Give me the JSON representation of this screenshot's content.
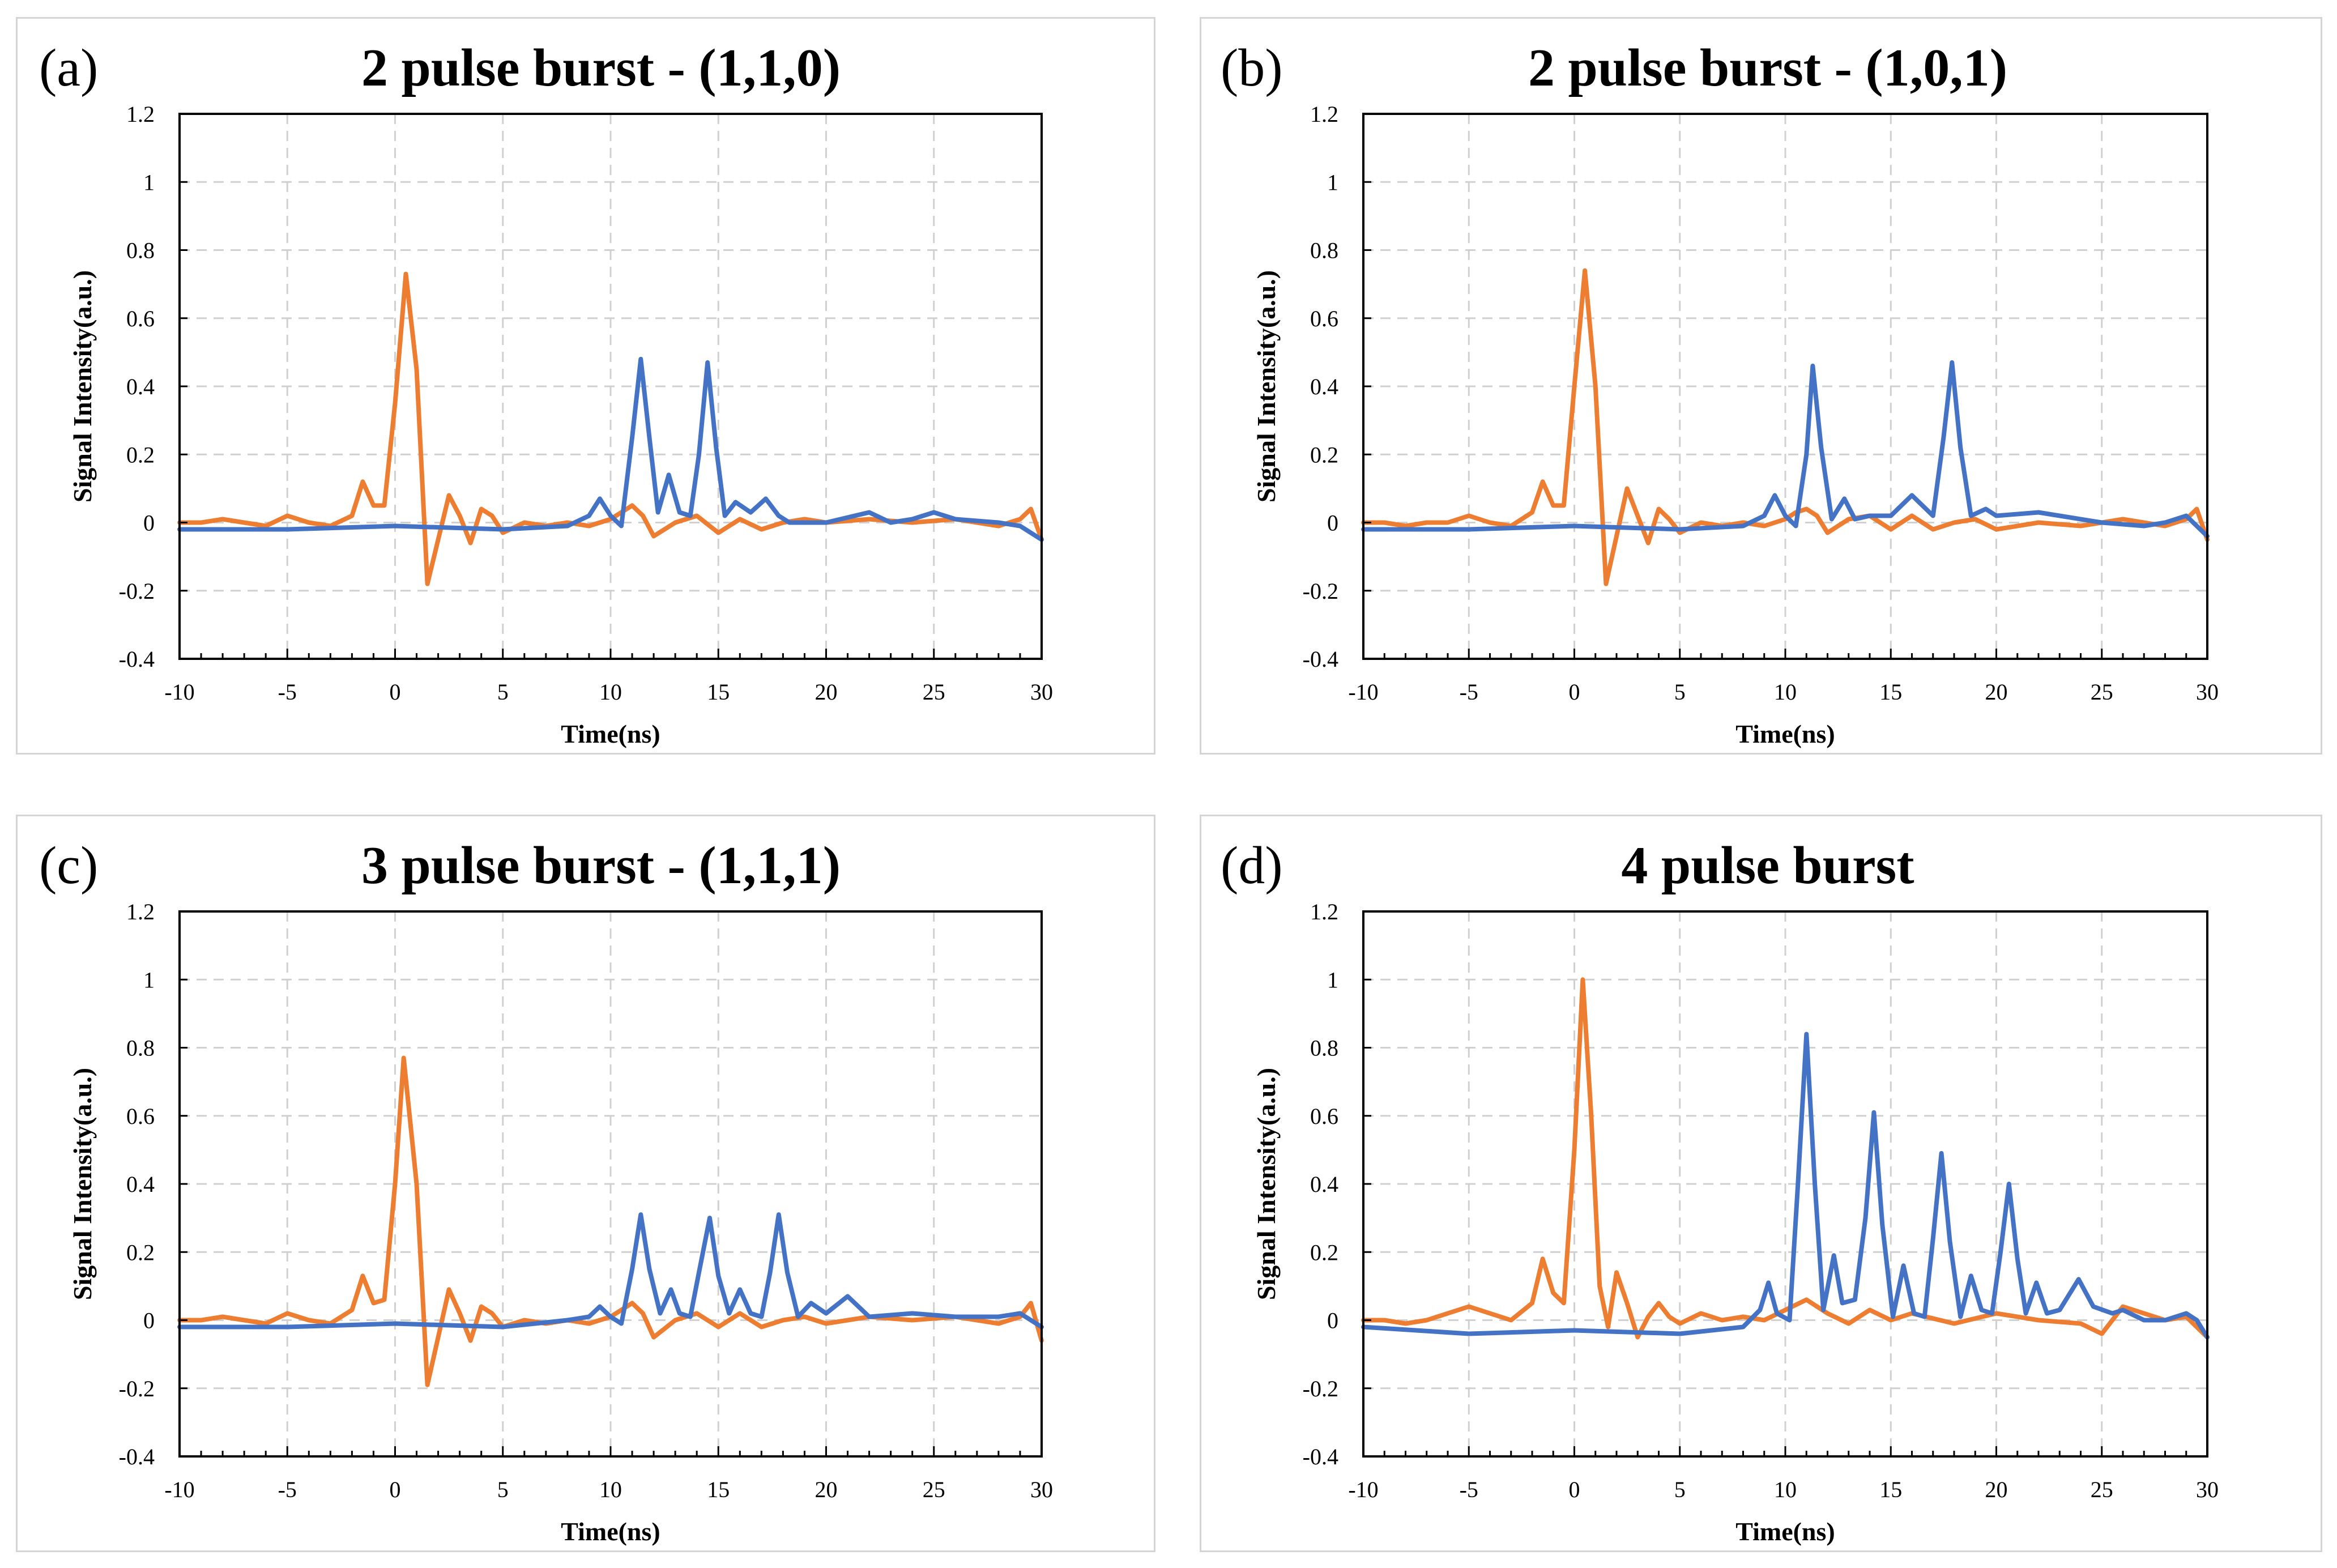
{
  "colors": {
    "blue": "#4472c4",
    "orange": "#ed7d31",
    "grid": "#d0d0d0"
  },
  "chart_data": [
    {
      "type": "line",
      "tag": "(a)",
      "title": "2 pulse burst  - (1,1,0)",
      "xlabel": "Time(ns)",
      "ylabel": "Signal Intensity(a.u.)",
      "xlim": [
        -10,
        30
      ],
      "ylim": [
        -0.4,
        1.2
      ],
      "x_ticks": [
        -10,
        -5,
        0,
        5,
        10,
        15,
        20,
        25,
        30
      ],
      "y_ticks": [
        -0.4,
        -0.2,
        0,
        0.2,
        0.4,
        0.6,
        0.8,
        1,
        1.2
      ],
      "grid": true,
      "series": [
        {
          "color": "#ed7d31",
          "x": [
            -10,
            -9,
            -8,
            -7,
            -6,
            -5,
            -4,
            -3,
            -2,
            -1.5,
            -1,
            -0.5,
            0,
            0.5,
            1,
            1.5,
            2,
            2.5,
            3,
            3.5,
            4,
            4.5,
            5,
            6,
            7,
            8,
            9,
            10,
            10.5,
            11,
            11.5,
            12,
            13,
            14,
            15,
            16,
            17,
            18,
            19,
            20,
            22,
            24,
            26,
            28,
            29,
            29.5,
            30
          ],
          "y": [
            0,
            0,
            0.01,
            0,
            -0.01,
            0.02,
            0,
            -0.01,
            0.02,
            0.12,
            0.05,
            0.05,
            0.35,
            0.73,
            0.45,
            -0.18,
            -0.05,
            0.08,
            0.02,
            -0.06,
            0.04,
            0.02,
            -0.03,
            0,
            -0.01,
            0,
            -0.01,
            0.01,
            0.03,
            0.05,
            0.02,
            -0.04,
            0,
            0.02,
            -0.03,
            0.01,
            -0.02,
            0,
            0.01,
            0,
            0.01,
            0,
            0.01,
            -0.01,
            0.01,
            0.04,
            -0.05
          ]
        },
        {
          "color": "#4472c4",
          "x": [
            -10,
            -5,
            0,
            5,
            8,
            9,
            9.5,
            10,
            10.5,
            11,
            11.4,
            11.8,
            12.2,
            12.7,
            13.2,
            13.7,
            14.1,
            14.5,
            14.9,
            15.3,
            15.8,
            16.5,
            17.2,
            17.8,
            18.3,
            19,
            20,
            22,
            23,
            24,
            25,
            26,
            28,
            29,
            30
          ],
          "y": [
            -0.02,
            -0.02,
            -0.01,
            -0.02,
            -0.01,
            0.02,
            0.07,
            0.02,
            -0.01,
            0.25,
            0.48,
            0.25,
            0.03,
            0.14,
            0.03,
            0.02,
            0.2,
            0.47,
            0.22,
            0.02,
            0.06,
            0.03,
            0.07,
            0.02,
            0,
            0,
            0,
            0.03,
            0,
            0.01,
            0.03,
            0.01,
            0,
            -0.01,
            -0.05
          ]
        }
      ]
    },
    {
      "type": "line",
      "tag": "(b)",
      "title": "2 pulse burst - (1,0,1)",
      "xlabel": "Time(ns)",
      "ylabel": "Signal Intensity(a.u.)",
      "xlim": [
        -10,
        30
      ],
      "ylim": [
        -0.4,
        1.2
      ],
      "x_ticks": [
        -10,
        -5,
        0,
        5,
        10,
        15,
        20,
        25,
        30
      ],
      "y_ticks": [
        -0.4,
        -0.2,
        0,
        0.2,
        0.4,
        0.6,
        0.8,
        1,
        1.2
      ],
      "grid": true,
      "series": [
        {
          "color": "#ed7d31",
          "x": [
            -10,
            -9,
            -8,
            -7,
            -6,
            -5,
            -4,
            -3,
            -2,
            -1.5,
            -1,
            -0.5,
            0,
            0.5,
            1,
            1.5,
            2,
            2.5,
            3,
            3.5,
            4,
            4.5,
            5,
            6,
            7,
            8,
            9,
            10,
            10.5,
            11,
            11.5,
            12,
            13,
            14,
            15,
            16,
            17,
            18,
            19,
            20,
            22,
            24,
            26,
            28,
            29,
            29.5,
            30
          ],
          "y": [
            0,
            0,
            -0.01,
            0,
            0,
            0.02,
            0,
            -0.01,
            0.03,
            0.12,
            0.05,
            0.05,
            0.4,
            0.74,
            0.4,
            -0.18,
            -0.04,
            0.1,
            0.02,
            -0.06,
            0.04,
            0.01,
            -0.03,
            0,
            -0.01,
            0,
            -0.01,
            0.01,
            0.03,
            0.04,
            0.02,
            -0.03,
            0.01,
            0.02,
            -0.02,
            0.02,
            -0.02,
            0,
            0.01,
            -0.02,
            0,
            -0.01,
            0.01,
            -0.01,
            0.01,
            0.04,
            -0.05
          ]
        },
        {
          "color": "#4472c4",
          "x": [
            -10,
            -5,
            0,
            5,
            8,
            9,
            9.5,
            10,
            10.5,
            11,
            11.3,
            11.7,
            12.2,
            12.8,
            13.3,
            14,
            15,
            15.5,
            16,
            16.5,
            17,
            17.5,
            17.9,
            18.3,
            18.8,
            19.5,
            20,
            22,
            25,
            27,
            28,
            29,
            30
          ],
          "y": [
            -0.02,
            -0.02,
            -0.01,
            -0.02,
            -0.01,
            0.02,
            0.08,
            0.02,
            -0.01,
            0.2,
            0.46,
            0.22,
            0.01,
            0.07,
            0.01,
            0.02,
            0.02,
            0.05,
            0.08,
            0.05,
            0.02,
            0.25,
            0.47,
            0.22,
            0.02,
            0.04,
            0.02,
            0.03,
            0,
            -0.01,
            0,
            0.02,
            -0.04
          ]
        }
      ]
    },
    {
      "type": "line",
      "tag": "(c)",
      "title": "3 pulse burst - (1,1,1)",
      "xlabel": "Time(ns)",
      "ylabel": "Signal Intensity(a.u.)",
      "xlim": [
        -10,
        30
      ],
      "ylim": [
        -0.4,
        1.2
      ],
      "x_ticks": [
        -10,
        -5,
        0,
        5,
        10,
        15,
        20,
        25,
        30
      ],
      "y_ticks": [
        -0.4,
        -0.2,
        0,
        0.2,
        0.4,
        0.6,
        0.8,
        1,
        1.2
      ],
      "grid": true,
      "series": [
        {
          "color": "#ed7d31",
          "x": [
            -10,
            -9,
            -8,
            -7,
            -6,
            -5,
            -4,
            -3,
            -2,
            -1.5,
            -1,
            -0.5,
            0,
            0.4,
            1,
            1.5,
            2,
            2.5,
            3,
            3.5,
            4,
            4.5,
            5,
            6,
            7,
            8,
            9,
            10,
            10.5,
            11,
            11.5,
            12,
            13,
            14,
            15,
            16,
            17,
            18,
            19,
            20,
            22,
            24,
            26,
            28,
            29,
            29.5,
            30
          ],
          "y": [
            0,
            0,
            0.01,
            0,
            -0.01,
            0.02,
            0,
            -0.01,
            0.03,
            0.13,
            0.05,
            0.06,
            0.4,
            0.77,
            0.4,
            -0.19,
            -0.05,
            0.09,
            0.02,
            -0.06,
            0.04,
            0.02,
            -0.02,
            0,
            -0.01,
            0,
            -0.01,
            0.01,
            0.03,
            0.05,
            0.02,
            -0.05,
            0,
            0.02,
            -0.02,
            0.02,
            -0.02,
            0,
            0.01,
            -0.01,
            0.01,
            0,
            0.01,
            -0.01,
            0.01,
            0.05,
            -0.06
          ]
        },
        {
          "color": "#4472c4",
          "x": [
            -10,
            -5,
            0,
            5,
            8,
            9,
            9.5,
            10,
            10.5,
            11,
            11.4,
            11.8,
            12.3,
            12.8,
            13.2,
            13.7,
            14.1,
            14.6,
            15,
            15.5,
            16,
            16.5,
            17,
            17.4,
            17.8,
            18.2,
            18.7,
            19.3,
            20,
            21,
            22,
            24,
            26,
            28,
            29,
            30
          ],
          "y": [
            -0.02,
            -0.02,
            -0.01,
            -0.02,
            0,
            0.01,
            0.04,
            0.01,
            -0.01,
            0.15,
            0.31,
            0.15,
            0.02,
            0.09,
            0.02,
            0.01,
            0.14,
            0.3,
            0.13,
            0.02,
            0.09,
            0.02,
            0.01,
            0.14,
            0.31,
            0.14,
            0.01,
            0.05,
            0.02,
            0.07,
            0.01,
            0.02,
            0.01,
            0.01,
            0.02,
            -0.02
          ]
        }
      ]
    },
    {
      "type": "line",
      "tag": "(d)",
      "title": "4 pulse burst",
      "xlabel": "Time(ns)",
      "ylabel": "Signal Intensity(a.u.)",
      "xlim": [
        -10,
        30
      ],
      "ylim": [
        -0.4,
        1.2
      ],
      "x_ticks": [
        -10,
        -5,
        0,
        5,
        10,
        15,
        20,
        25,
        30
      ],
      "y_ticks": [
        -0.4,
        -0.2,
        0,
        0.2,
        0.4,
        0.6,
        0.8,
        1,
        1.2
      ],
      "grid": true,
      "series": [
        {
          "color": "#ed7d31",
          "x": [
            -10,
            -9,
            -8,
            -7,
            -6,
            -5,
            -4,
            -3,
            -2,
            -1.5,
            -1,
            -0.5,
            0,
            0.4,
            0.8,
            1.2,
            1.6,
            2,
            2.5,
            3,
            3.5,
            4,
            4.5,
            5,
            6,
            7,
            8,
            9,
            10,
            11,
            12,
            13,
            14,
            15,
            16,
            18,
            20,
            22,
            24,
            25,
            26,
            28,
            29,
            30
          ],
          "y": [
            0,
            0,
            -0.01,
            0,
            0.02,
            0.04,
            0.02,
            0,
            0.05,
            0.18,
            0.08,
            0.05,
            0.5,
            1.0,
            0.6,
            0.1,
            -0.02,
            0.14,
            0.05,
            -0.05,
            0.01,
            0.05,
            0.01,
            -0.01,
            0.02,
            0,
            0.01,
            0,
            0.03,
            0.06,
            0.02,
            -0.01,
            0.03,
            0,
            0.02,
            -0.01,
            0.02,
            0,
            -0.01,
            -0.04,
            0.04,
            0,
            0.01,
            -0.05
          ]
        },
        {
          "color": "#4472c4",
          "x": [
            -10,
            -5,
            0,
            5,
            8,
            8.8,
            9.2,
            9.6,
            10.2,
            10.6,
            11,
            11.4,
            11.8,
            12.3,
            12.7,
            13.3,
            13.8,
            14.2,
            14.6,
            15.1,
            15.6,
            16.1,
            16.6,
            17,
            17.4,
            17.8,
            18.3,
            18.8,
            19.3,
            19.8,
            20.2,
            20.6,
            21,
            21.4,
            21.9,
            22.4,
            23,
            23.9,
            24.6,
            25.5,
            26,
            27,
            28,
            29,
            29.5,
            30
          ],
          "y": [
            -0.02,
            -0.04,
            -0.03,
            -0.04,
            -0.02,
            0.03,
            0.11,
            0.02,
            0,
            0.4,
            0.84,
            0.4,
            0.03,
            0.19,
            0.05,
            0.06,
            0.3,
            0.61,
            0.28,
            0.01,
            0.16,
            0.02,
            0.01,
            0.24,
            0.49,
            0.23,
            0.01,
            0.13,
            0.03,
            0.02,
            0.2,
            0.4,
            0.18,
            0.02,
            0.11,
            0.02,
            0.03,
            0.12,
            0.04,
            0.02,
            0.03,
            0,
            0,
            0.02,
            0,
            -0.05
          ]
        }
      ]
    }
  ]
}
